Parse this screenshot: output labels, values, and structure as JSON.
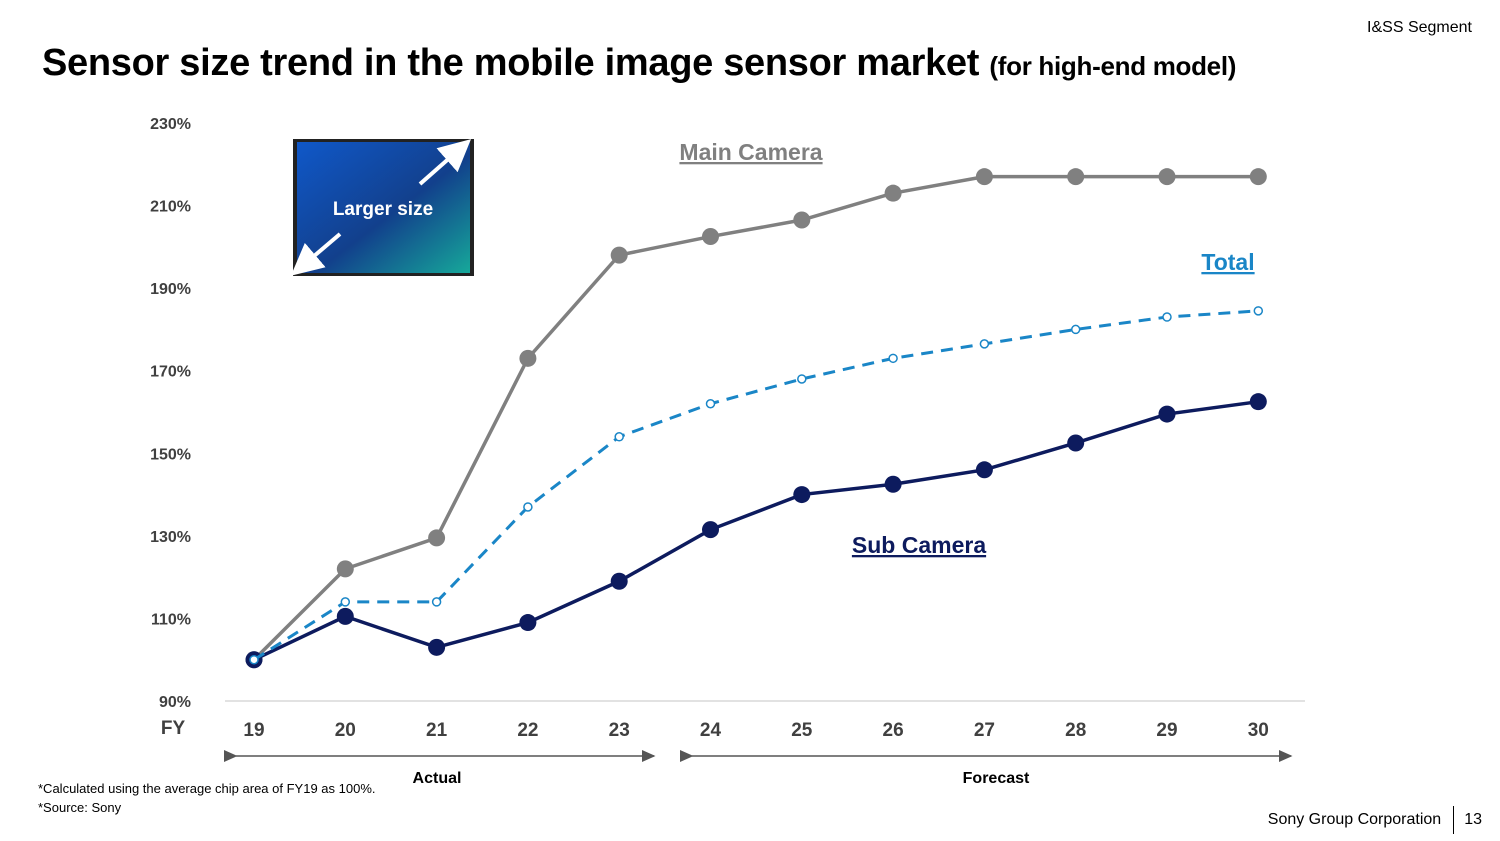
{
  "header": {
    "segment": "I&SS Segment",
    "title": "Sensor size trend in the mobile image sensor market",
    "title_sub": "(for high-end model)"
  },
  "chart_data": {
    "type": "line",
    "xlabel": "FY",
    "categories": [
      "19",
      "20",
      "21",
      "22",
      "23",
      "24",
      "25",
      "26",
      "27",
      "28",
      "29",
      "30"
    ],
    "ylim": [
      90,
      230
    ],
    "yticks": [
      90,
      110,
      130,
      150,
      170,
      190,
      210,
      230
    ],
    "ytick_labels": [
      "90%",
      "110%",
      "130%",
      "150%",
      "170%",
      "190%",
      "210%",
      "230%"
    ],
    "series": [
      {
        "name": "Main Camera",
        "values": [
          100,
          122,
          129.5,
          173,
          198,
          202.5,
          206.5,
          213,
          217,
          217,
          217,
          217
        ],
        "color": "#808080",
        "style": "solid"
      },
      {
        "name": "Total",
        "values": [
          100,
          114,
          114,
          137,
          154,
          162,
          168,
          173,
          176.5,
          180,
          183,
          184.5
        ],
        "color": "#1a86c7",
        "style": "dashed"
      },
      {
        "name": "Sub Camera",
        "values": [
          100,
          110.5,
          103,
          109,
          119,
          131.5,
          140,
          142.5,
          146,
          152.5,
          159.5,
          162.5
        ],
        "color": "#0d1b5e",
        "style": "solid"
      }
    ],
    "periods": [
      {
        "label": "Actual",
        "from": "19",
        "to": "23"
      },
      {
        "label": "Forecast",
        "from": "24",
        "to": "30"
      }
    ],
    "inset_label": "Larger size",
    "grid": false
  },
  "notes": [
    "*Calculated using the average chip area of FY19 as 100%.",
    "*Source: Sony"
  ],
  "footer": {
    "company": "Sony Group Corporation",
    "page": "13"
  }
}
